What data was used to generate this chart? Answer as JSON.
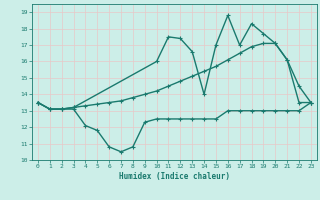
{
  "xlabel": "Humidex (Indice chaleur)",
  "bg_color": "#cceee8",
  "grid_color": "#aaddcc",
  "line_color": "#1a7a6e",
  "xlim": [
    -0.5,
    23.5
  ],
  "ylim": [
    10,
    19.5
  ],
  "xticks": [
    0,
    1,
    2,
    3,
    4,
    5,
    6,
    7,
    8,
    9,
    10,
    11,
    12,
    13,
    14,
    15,
    16,
    17,
    18,
    19,
    20,
    21,
    22,
    23
  ],
  "yticks": [
    10,
    11,
    12,
    13,
    14,
    15,
    16,
    17,
    18,
    19
  ],
  "line_min_x": [
    0,
    1,
    2,
    3,
    4,
    5,
    6,
    7,
    8,
    9,
    10,
    11,
    12,
    13,
    14,
    15,
    16,
    17,
    18,
    19,
    20,
    21,
    22,
    23
  ],
  "line_min_y": [
    13.5,
    13.1,
    13.1,
    13.1,
    12.1,
    11.8,
    10.8,
    10.5,
    10.8,
    12.3,
    12.5,
    12.5,
    12.5,
    12.5,
    12.5,
    12.5,
    13.0,
    13.0,
    13.0,
    13.0,
    13.0,
    13.0,
    13.0,
    13.5
  ],
  "line_avg_x": [
    0,
    1,
    2,
    3,
    4,
    5,
    6,
    7,
    8,
    9,
    10,
    11,
    12,
    13,
    14,
    15,
    16,
    17,
    18,
    19,
    20,
    21,
    22,
    23
  ],
  "line_avg_y": [
    13.5,
    13.1,
    13.1,
    13.2,
    13.3,
    13.4,
    13.5,
    13.6,
    13.8,
    14.0,
    14.2,
    14.5,
    14.8,
    15.1,
    15.4,
    15.7,
    16.1,
    16.5,
    16.9,
    17.1,
    17.1,
    16.1,
    13.5,
    13.5
  ],
  "line_max_x": [
    0,
    1,
    2,
    3,
    10,
    11,
    12,
    13,
    14,
    15,
    16,
    17,
    18,
    19,
    20,
    21,
    22,
    23
  ],
  "line_max_y": [
    13.5,
    13.1,
    13.1,
    13.2,
    16.0,
    17.5,
    17.4,
    16.6,
    14.0,
    17.0,
    18.8,
    17.0,
    18.3,
    17.7,
    17.1,
    16.1,
    14.5,
    13.5
  ]
}
